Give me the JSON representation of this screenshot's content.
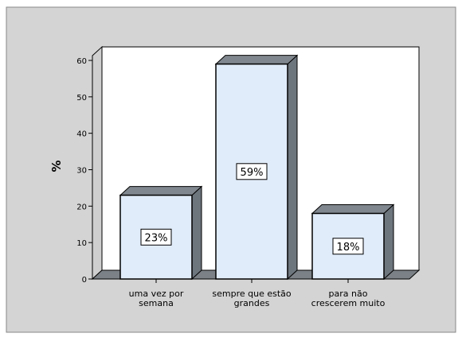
{
  "chart_data": {
    "type": "bar",
    "categories": [
      [
        "uma vez por",
        "semana"
      ],
      [
        "sempre que estão",
        "grandes"
      ],
      [
        "para não",
        "crescerem muito"
      ]
    ],
    "values": [
      23,
      59,
      18
    ],
    "data_labels": [
      "23%",
      "59%",
      "18%"
    ],
    "ylabel": "%",
    "ylim": [
      0,
      60
    ],
    "yticks": [
      0,
      10,
      20,
      30,
      40,
      50,
      60
    ],
    "grid": false,
    "legend": "none",
    "three_d": true
  },
  "colors": {
    "frame_background": "#d4d4d4",
    "plot_background": "#ffffff",
    "bar_face": "#e1ecfa",
    "bar_side": "#6d757d",
    "bar_top": "#80878e",
    "wall_side": "#cfcfcf",
    "floor": "#7b8186",
    "outline": "#000000"
  }
}
